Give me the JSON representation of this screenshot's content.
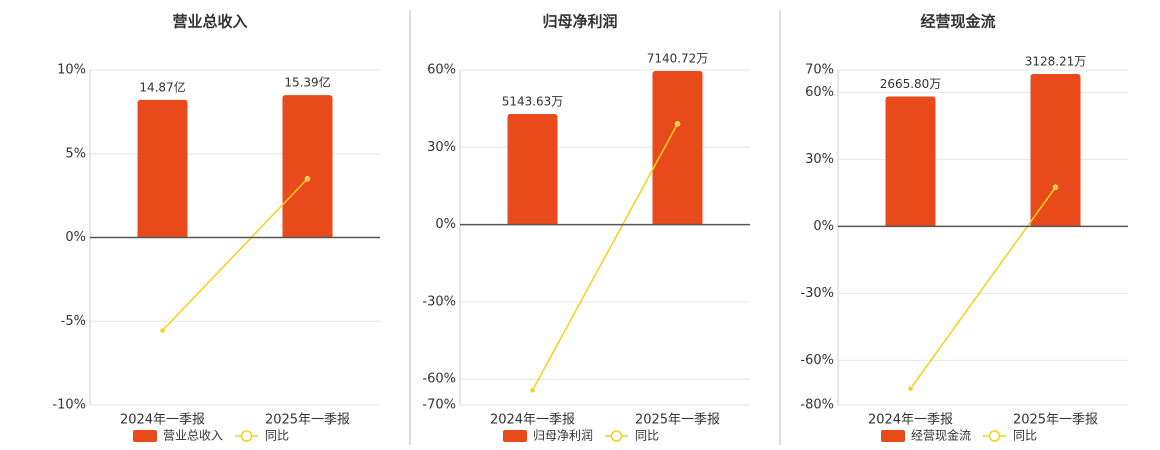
{
  "chart_data": [
    {
      "type": "bar",
      "title": "营业总收入",
      "categories": [
        "2024年一季报",
        "2025年一季报"
      ],
      "series": [
        {
          "name": "营业总收入",
          "color": "#e84a1b",
          "axis": "y2",
          "values": [
            14.87,
            15.39
          ],
          "value_labels": [
            "14.87亿",
            "15.39亿"
          ]
        },
        {
          "name": "同比",
          "color": "#f2d21a",
          "type": "line",
          "values": [
            -5.55,
            3.51
          ]
        }
      ],
      "ylim": [
        -10,
        10
      ],
      "yticks": [
        {
          "value": 10,
          "label": "10%"
        },
        {
          "value": 5,
          "label": "5%"
        },
        {
          "value": 0,
          "label": "0%"
        },
        {
          "value": -5,
          "label": "-5%"
        },
        {
          "value": -10,
          "label": "-10%"
        }
      ],
      "y2lim": [
        -18.1,
        18.1
      ],
      "grid": true
    },
    {
      "type": "bar",
      "title": "归母净利润",
      "categories": [
        "2024年一季报",
        "2025年一季报"
      ],
      "series": [
        {
          "name": "归母净利润",
          "color": "#e84a1b",
          "axis": "y2",
          "values": [
            5143.63,
            7140.72
          ],
          "value_labels": [
            "5143.63万",
            "7140.72万"
          ]
        },
        {
          "name": "同比",
          "color": "#f2d21a",
          "type": "line",
          "values": [
            -64.3,
            39.1
          ]
        }
      ],
      "ylim": [
        -70,
        60
      ],
      "yticks": [
        {
          "value": 60,
          "label": "60%"
        },
        {
          "value": 30,
          "label": "30%"
        },
        {
          "value": 0,
          "label": "0%"
        },
        {
          "value": -30,
          "label": "-30%"
        },
        {
          "value": -60,
          "label": "-60%"
        },
        {
          "value": -70,
          "label": "-70%"
        }
      ],
      "y2lim": [
        -8385,
        7187
      ],
      "grid": true
    },
    {
      "type": "bar",
      "title": "经营现金流",
      "categories": [
        "2024年一季报",
        "2025年一季报"
      ],
      "series": [
        {
          "name": "经营现金流",
          "color": "#e84a1b",
          "axis": "y2",
          "values": [
            2665.8,
            3128.21
          ],
          "value_labels": [
            "2665.80万",
            "3128.21万"
          ]
        },
        {
          "name": "同比",
          "color": "#f2d21a",
          "type": "line",
          "values": [
            -72.7,
            17.5
          ]
        }
      ],
      "ylim": [
        -80,
        70
      ],
      "yticks": [
        {
          "value": 70,
          "label": "70%"
        },
        {
          "value": 60,
          "label": "60%"
        },
        {
          "value": 30,
          "label": "30%"
        },
        {
          "value": 0,
          "label": "0%"
        },
        {
          "value": -30,
          "label": "-30%"
        },
        {
          "value": -60,
          "label": "-60%"
        },
        {
          "value": -80,
          "label": "-80%"
        }
      ],
      "y2lim": [
        -3669,
        3210
      ],
      "grid": true
    }
  ]
}
